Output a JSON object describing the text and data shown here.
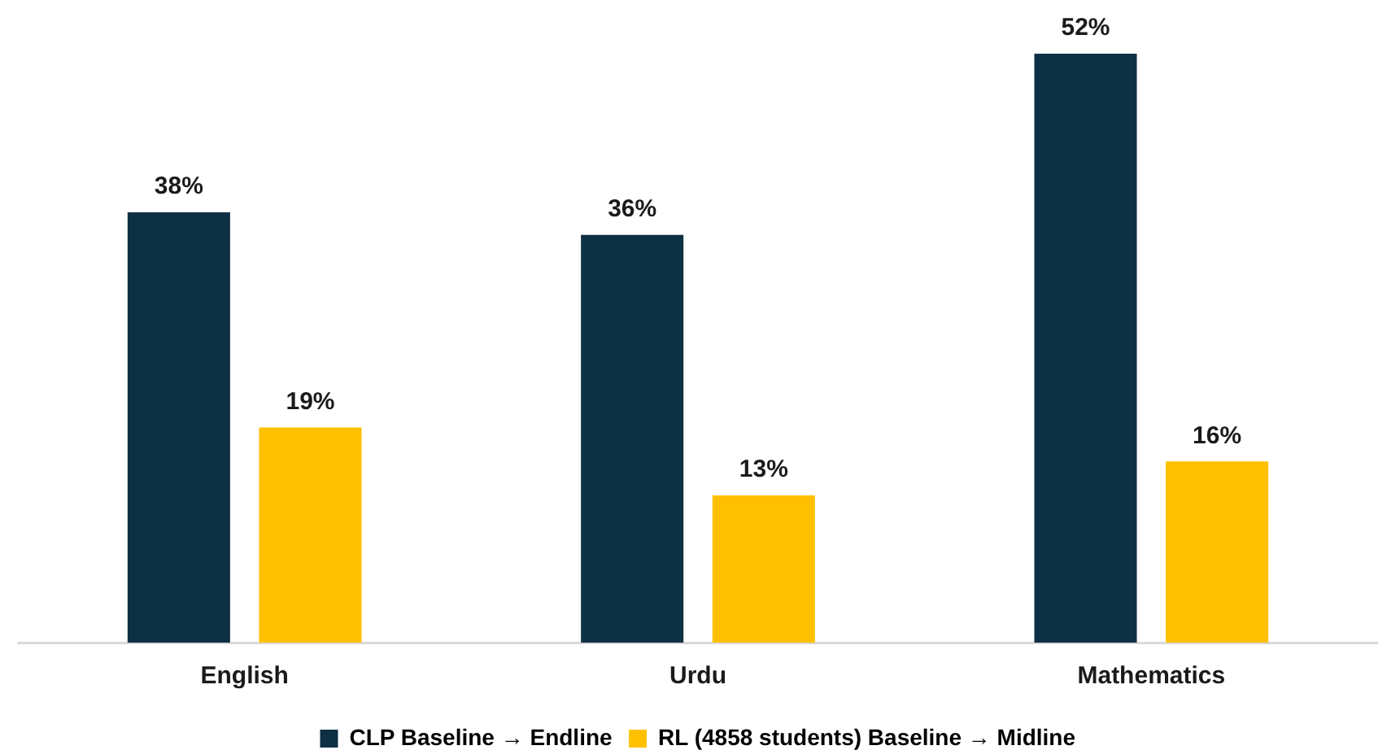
{
  "chart_data": {
    "type": "bar",
    "categories": [
      "English",
      "Urdu",
      "Mathematics"
    ],
    "series": [
      {
        "name": "CLP Baseline → Endline",
        "color": "#0e3044",
        "values": [
          38,
          36,
          52
        ],
        "value_labels": [
          "38%",
          "36%",
          "52%"
        ]
      },
      {
        "name": "RL (4858 students) Baseline → Midline",
        "color": "#ffc000",
        "values": [
          19,
          13,
          16
        ],
        "value_labels": [
          "19%",
          "13%",
          "16%"
        ]
      }
    ],
    "tick_labels": "x",
    "legend": "bottom"
  }
}
